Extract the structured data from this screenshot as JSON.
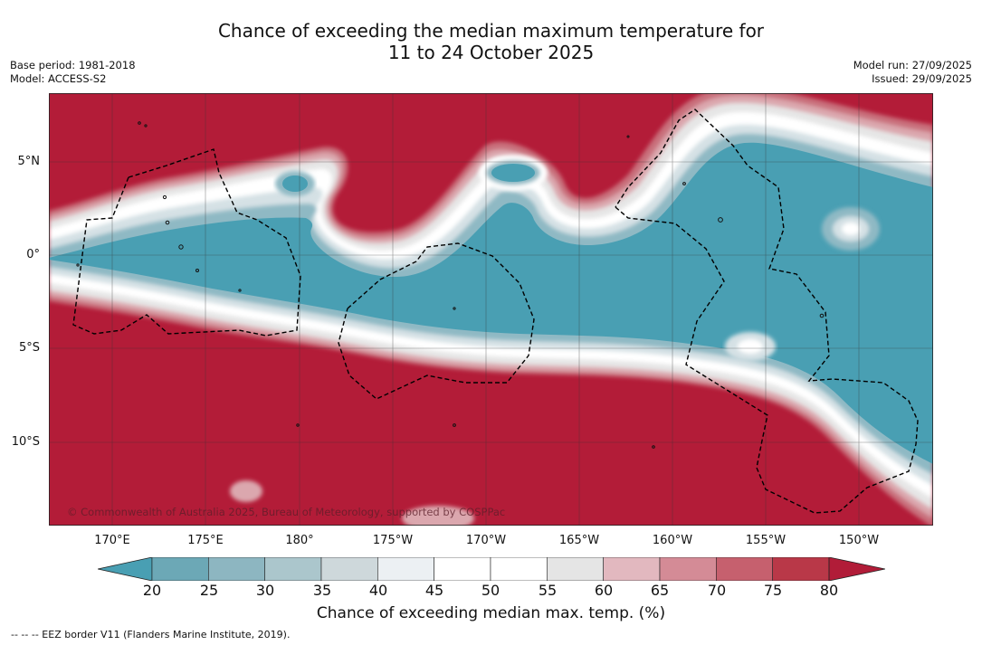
{
  "header": {
    "title_line1": "Chance of exceeding the median maximum temperature for",
    "title_line2": "11 to 24 October 2025",
    "base_period": "Base period: 1981-2018",
    "model": "Model: ACCESS-S2",
    "model_run": "Model run: 27/09/2025",
    "issued": "Issued: 29/09/2025"
  },
  "map": {
    "lat_labels": [
      "5°N",
      "0°",
      "5°S",
      "10°S"
    ],
    "lon_labels": [
      "170°E",
      "175°E",
      "180°",
      "175°W",
      "170°W",
      "165°W",
      "160°W",
      "155°W",
      "150°W"
    ],
    "copyright": "© Commonwealth of Australia 2025, Bureau of Meteorology, supported by COSPPac"
  },
  "colorbar": {
    "ticks": [
      "20",
      "25",
      "30",
      "35",
      "40",
      "45",
      "50",
      "55",
      "60",
      "65",
      "70",
      "75",
      "80"
    ],
    "colors": [
      "#499fb3",
      "#6ca8b6",
      "#8db6c1",
      "#abc6cc",
      "#ced8db",
      "#ecf0f3",
      "#ffffff",
      "#ffffff",
      "#e5e5e5",
      "#e2b8bf",
      "#d48b96",
      "#c6606e",
      "#b93848",
      "#b11c38"
    ],
    "label": "Chance of exceeding median max. temp. (%)"
  },
  "legend": {
    "eez": "--  --  -- EEZ border V11 (Flanders Marine Institute, 2019)."
  }
}
